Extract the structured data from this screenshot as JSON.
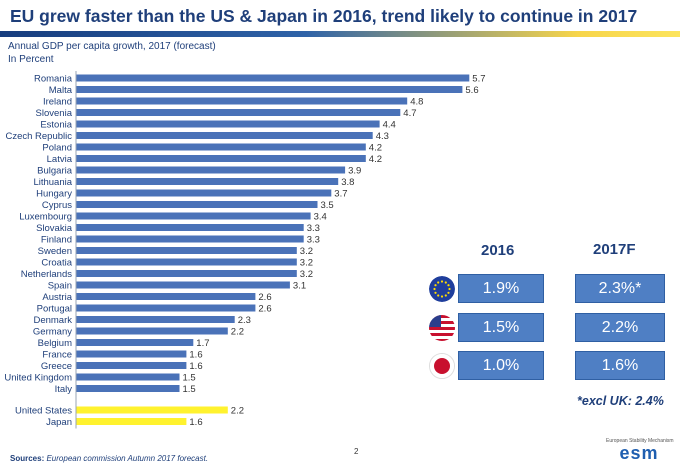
{
  "header": {
    "title": "EU grew faster than the US & Japan in 2016, trend likely to continue in 2017",
    "subtitle_1": "Annual GDP per capita growth, 2017 (forecast)",
    "subtitle_2": "In Percent"
  },
  "chart_data": {
    "type": "bar",
    "orientation": "horizontal",
    "title": "Annual GDP per capita growth, 2017 (forecast)",
    "ylabel": "In Percent",
    "xlim": [
      0,
      6
    ],
    "grid": false,
    "categories": [
      "Romania",
      "Malta",
      "Ireland",
      "Slovenia",
      "Estonia",
      "Czech Republic",
      "Poland",
      "Latvia",
      "Bulgaria",
      "Lithuania",
      "Hungary",
      "Cyprus",
      "Luxembourg",
      "Slovakia",
      "Finland",
      "Sweden",
      "Croatia",
      "Netherlands",
      "Spain",
      "Austria",
      "Portugal",
      "Denmark",
      "Germany",
      "Belgium",
      "France",
      "Greece",
      "United Kingdom",
      "Italy",
      "United States",
      "Japan"
    ],
    "values": [
      5.7,
      5.6,
      4.8,
      4.7,
      4.4,
      4.3,
      4.2,
      4.2,
      3.9,
      3.8,
      3.7,
      3.5,
      3.4,
      3.3,
      3.3,
      3.2,
      3.2,
      3.2,
      3.1,
      2.6,
      2.6,
      2.3,
      2.2,
      1.7,
      1.6,
      1.6,
      1.5,
      1.5,
      2.2,
      1.6
    ],
    "value_labels": [
      "5.7",
      "5.6",
      "4.8",
      "4.7",
      "4.4",
      "4.3",
      "4.2",
      "4.2",
      "3.9",
      "3.8",
      "3.7",
      "3.5",
      "3.4",
      "3.3",
      "3.3",
      "3.2",
      "3.2",
      "3.2",
      "3.1",
      "2.6",
      "2.6",
      "2.3",
      "2.2",
      "1.7",
      "1.6",
      "1.6",
      "1.5",
      "1.5",
      "2.2",
      "1.6"
    ],
    "highlighted": [
      "United States",
      "Japan"
    ],
    "colors": {
      "eu": "#4a72b8",
      "highlight": "#fff22e",
      "axis": "#9aa4b4"
    }
  },
  "comparison": {
    "col_2016": "2016",
    "col_2017": "2017F",
    "rows": [
      {
        "flag": "eu-flag-icon",
        "v2016": "1.9%",
        "v2017": "2.3%*"
      },
      {
        "flag": "us-flag-icon",
        "v2016": "1.5%",
        "v2017": "2.2%"
      },
      {
        "flag": "japan-flag-icon",
        "v2016": "1.0%",
        "v2017": "1.6%"
      }
    ],
    "note": "*excl UK: 2.4%"
  },
  "footer": {
    "sources_label": "Sources:",
    "sources_text": "European commission Autumn 2017 forecast.",
    "page_number": "2",
    "logo_caption": "European Stability Mechanism",
    "logo_word": "esm"
  }
}
